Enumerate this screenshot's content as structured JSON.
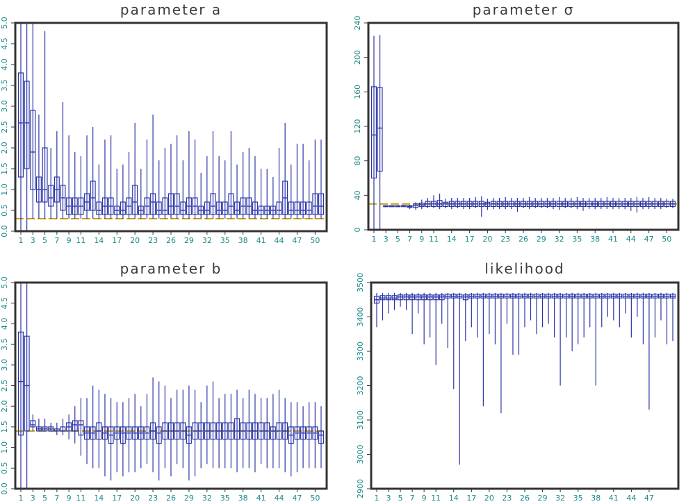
{
  "colors": {
    "box": "#2b35a8",
    "truth": "#c8a000",
    "tick_label": "#1a8a8a",
    "frame": "#333333"
  },
  "chart_data": [
    {
      "type": "boxplot",
      "title": "parameter a",
      "ylim": [
        0,
        5
      ],
      "yticks": [
        "0.0",
        "0.5",
        "1.0",
        "1.5",
        "2.0",
        "2.5",
        "3.0",
        "3.5",
        "4.0",
        "4.5",
        "5.0"
      ],
      "ytick_values": [
        0,
        0.5,
        1,
        1.5,
        2,
        2.5,
        3,
        3.5,
        4,
        4.5,
        5
      ],
      "xlabels": [
        "1",
        "3",
        "5",
        "7",
        "9",
        "11",
        "14",
        "17",
        "20",
        "23",
        "26",
        "29",
        "32",
        "35",
        "38",
        "41",
        "44",
        "47",
        "50"
      ],
      "xlabel_positions": [
        1,
        3,
        5,
        7,
        9,
        11,
        14,
        17,
        20,
        23,
        26,
        29,
        32,
        35,
        38,
        41,
        44,
        47,
        50
      ],
      "truth_line": 0.3,
      "whisker_low": [
        0.0,
        0.0,
        0.3,
        0.3,
        0.3,
        0.3,
        0.3,
        0.3,
        0.3,
        0.3,
        0.3,
        0.3,
        0.3,
        0.3,
        0.3,
        0.3,
        0.3,
        0.3,
        0.3,
        0.3,
        0.3,
        0.3,
        0.3,
        0.3,
        0.3,
        0.3,
        0.3,
        0.3,
        0.3,
        0.3,
        0.3,
        0.3,
        0.3,
        0.3,
        0.3,
        0.3,
        0.3,
        0.3,
        0.3,
        0.3,
        0.3,
        0.3,
        0.3,
        0.3,
        0.3,
        0.3,
        0.3,
        0.3,
        0.3,
        0.3,
        0.3
      ],
      "whisker_high": [
        5.0,
        5.0,
        5.0,
        2.8,
        4.8,
        2.0,
        2.4,
        3.1,
        2.3,
        1.9,
        1.8,
        2.3,
        2.5,
        1.6,
        2.2,
        2.3,
        1.5,
        1.6,
        1.9,
        2.6,
        1.5,
        2.2,
        2.8,
        1.7,
        2.0,
        2.1,
        2.3,
        1.7,
        2.4,
        2.2,
        1.4,
        1.8,
        2.4,
        1.8,
        1.7,
        2.4,
        1.6,
        1.9,
        2.0,
        1.8,
        1.5,
        1.5,
        1.3,
        2.0,
        2.6,
        1.6,
        2.1,
        2.1,
        1.7,
        2.2,
        2.2
      ],
      "q1": [
        1.3,
        1.5,
        1.0,
        0.7,
        0.7,
        0.6,
        0.7,
        0.5,
        0.4,
        0.4,
        0.4,
        0.5,
        0.5,
        0.4,
        0.4,
        0.4,
        0.4,
        0.4,
        0.4,
        0.4,
        0.4,
        0.4,
        0.4,
        0.4,
        0.4,
        0.4,
        0.4,
        0.4,
        0.4,
        0.4,
        0.4,
        0.4,
        0.4,
        0.4,
        0.4,
        0.4,
        0.4,
        0.4,
        0.4,
        0.4,
        0.4,
        0.4,
        0.4,
        0.4,
        0.4,
        0.4,
        0.4,
        0.4,
        0.4,
        0.4,
        0.4
      ],
      "median": [
        2.6,
        2.6,
        1.9,
        1.0,
        1.0,
        0.8,
        1.0,
        0.8,
        0.6,
        0.6,
        0.6,
        0.7,
        0.8,
        0.5,
        0.6,
        0.6,
        0.5,
        0.5,
        0.6,
        0.7,
        0.5,
        0.6,
        0.7,
        0.5,
        0.5,
        0.6,
        0.6,
        0.5,
        0.6,
        0.6,
        0.5,
        0.5,
        0.6,
        0.5,
        0.5,
        0.6,
        0.5,
        0.6,
        0.6,
        0.5,
        0.5,
        0.5,
        0.5,
        0.5,
        0.8,
        0.5,
        0.5,
        0.5,
        0.5,
        0.6,
        0.6
      ],
      "q3": [
        3.8,
        3.6,
        2.9,
        1.3,
        2.0,
        1.1,
        1.3,
        1.1,
        0.8,
        0.8,
        0.8,
        0.9,
        1.2,
        0.7,
        0.8,
        0.8,
        0.6,
        0.7,
        0.8,
        1.1,
        0.6,
        0.8,
        0.9,
        0.7,
        0.8,
        0.9,
        0.9,
        0.7,
        0.8,
        0.8,
        0.6,
        0.7,
        0.9,
        0.7,
        0.7,
        0.9,
        0.7,
        0.8,
        0.8,
        0.7,
        0.6,
        0.6,
        0.6,
        0.7,
        1.2,
        0.7,
        0.7,
        0.7,
        0.7,
        0.9,
        0.9
      ]
    },
    {
      "type": "boxplot",
      "title": "parameter σ",
      "ylim": [
        0,
        240
      ],
      "yticks": [
        "0",
        "40",
        "80",
        "120",
        "160",
        "200",
        "240"
      ],
      "ytick_values": [
        0,
        40,
        80,
        120,
        160,
        200,
        240
      ],
      "xlabels": [
        "1",
        "3",
        "5",
        "7",
        "9",
        "11",
        "14",
        "17",
        "20",
        "23",
        "26",
        "29",
        "32",
        "35",
        "38",
        "41",
        "44",
        "47",
        "50"
      ],
      "xlabel_positions": [
        1,
        3,
        5,
        7,
        9,
        11,
        14,
        17,
        20,
        23,
        26,
        29,
        32,
        35,
        38,
        41,
        44,
        47,
        50
      ],
      "truth_line": 30,
      "whisker_low": [
        0,
        0,
        27,
        27,
        27,
        27,
        24,
        23,
        24,
        25,
        25,
        24,
        25,
        24,
        25,
        24,
        24,
        25,
        15,
        23,
        24,
        24,
        24,
        24,
        21,
        25,
        24,
        25,
        25,
        25,
        24,
        23,
        25,
        25,
        24,
        22,
        24,
        24,
        24,
        24,
        24,
        24,
        24,
        22,
        20,
        24,
        24,
        24,
        24,
        25,
        25
      ],
      "whisker_high": [
        225,
        226,
        28,
        28,
        28,
        29,
        29,
        32,
        35,
        37,
        40,
        42,
        36,
        37,
        37,
        37,
        37,
        38,
        39,
        36,
        37,
        37,
        38,
        37,
        37,
        37,
        38,
        37,
        37,
        37,
        37,
        38,
        37,
        37,
        38,
        37,
        37,
        37,
        37,
        38,
        37,
        37,
        37,
        37,
        38,
        37,
        38,
        37,
        37,
        36,
        36
      ],
      "q1": [
        60,
        68,
        27,
        27,
        27,
        27,
        26,
        26,
        27,
        27,
        27,
        27,
        27,
        27,
        27,
        27,
        27,
        27,
        27,
        27,
        27,
        27,
        27,
        27,
        27,
        27,
        27,
        27,
        27,
        27,
        27,
        27,
        27,
        27,
        27,
        27,
        27,
        27,
        27,
        27,
        27,
        27,
        27,
        27,
        27,
        27,
        27,
        27,
        27,
        27,
        27
      ],
      "median": [
        110,
        118,
        27,
        27,
        27,
        28,
        27,
        28,
        29,
        30,
        30,
        30,
        30,
        30,
        30,
        30,
        30,
        30,
        30,
        30,
        30,
        30,
        30,
        30,
        30,
        30,
        30,
        30,
        30,
        30,
        30,
        30,
        30,
        30,
        30,
        30,
        30,
        30,
        30,
        30,
        30,
        30,
        30,
        30,
        30,
        30,
        30,
        30,
        30,
        30,
        30
      ],
      "q3": [
        166,
        165,
        28,
        28,
        28,
        28,
        28,
        30,
        31,
        33,
        33,
        34,
        32,
        33,
        33,
        33,
        33,
        33,
        33,
        32,
        33,
        33,
        33,
        33,
        33,
        33,
        33,
        33,
        33,
        33,
        33,
        33,
        33,
        33,
        33,
        33,
        33,
        33,
        33,
        33,
        33,
        33,
        33,
        33,
        33,
        33,
        33,
        33,
        33,
        33,
        33
      ]
    },
    {
      "type": "boxplot",
      "title": "parameter b",
      "ylim": [
        0,
        5
      ],
      "yticks": [
        "0.0",
        "0.5",
        "1.0",
        "1.5",
        "2.0",
        "2.5",
        "3.0",
        "3.5",
        "4.0",
        "4.5",
        "5.0"
      ],
      "ytick_values": [
        0,
        0.5,
        1,
        1.5,
        2,
        2.5,
        3,
        3.5,
        4,
        4.5,
        5
      ],
      "xlabels": [
        "1",
        "3",
        "5",
        "7",
        "9",
        "11",
        "14",
        "17",
        "20",
        "23",
        "26",
        "29",
        "32",
        "35",
        "38",
        "41",
        "44",
        "47",
        "50"
      ],
      "xlabel_positions": [
        1,
        3,
        5,
        7,
        9,
        11,
        14,
        17,
        20,
        23,
        26,
        29,
        32,
        35,
        38,
        41,
        44,
        47,
        50
      ],
      "truth_line": 1.4,
      "whisker_low": [
        0.0,
        0.0,
        1.4,
        1.4,
        1.4,
        1.4,
        1.3,
        1.3,
        1.2,
        1.1,
        0.8,
        0.6,
        0.5,
        0.5,
        0.3,
        0.2,
        0.4,
        0.3,
        0.4,
        0.4,
        0.5,
        0.6,
        0.4,
        0.2,
        0.5,
        0.3,
        0.6,
        0.5,
        0.2,
        0.3,
        0.5,
        0.6,
        0.5,
        0.5,
        0.5,
        0.5,
        0.4,
        0.5,
        0.5,
        0.4,
        0.6,
        0.5,
        0.5,
        0.5,
        0.4,
        0.3,
        0.4,
        0.5,
        0.5,
        0.5,
        0.5
      ],
      "whisker_high": [
        5.0,
        5.0,
        1.8,
        1.7,
        1.7,
        1.6,
        1.6,
        1.7,
        1.8,
        2.0,
        2.2,
        2.2,
        2.5,
        2.4,
        2.3,
        2.2,
        2.1,
        2.1,
        2.2,
        2.3,
        2.0,
        2.3,
        2.7,
        2.6,
        2.5,
        2.2,
        2.4,
        2.4,
        2.5,
        2.4,
        2.1,
        2.5,
        2.6,
        2.2,
        2.3,
        2.3,
        2.4,
        2.2,
        2.4,
        2.3,
        2.2,
        2.2,
        2.3,
        2.4,
        2.2,
        2.1,
        2.1,
        2.0,
        2.1,
        2.1,
        2.0
      ],
      "q1": [
        1.3,
        1.4,
        1.5,
        1.4,
        1.4,
        1.4,
        1.4,
        1.4,
        1.4,
        1.4,
        1.3,
        1.2,
        1.2,
        1.2,
        1.2,
        1.1,
        1.2,
        1.1,
        1.2,
        1.2,
        1.2,
        1.2,
        1.2,
        1.1,
        1.2,
        1.2,
        1.2,
        1.2,
        1.1,
        1.2,
        1.2,
        1.2,
        1.2,
        1.2,
        1.2,
        1.2,
        1.2,
        1.2,
        1.2,
        1.2,
        1.2,
        1.2,
        1.2,
        1.2,
        1.2,
        1.1,
        1.2,
        1.2,
        1.2,
        1.2,
        1.1
      ],
      "median": [
        2.6,
        2.5,
        1.55,
        1.45,
        1.45,
        1.45,
        1.4,
        1.4,
        1.5,
        1.55,
        1.55,
        1.35,
        1.35,
        1.4,
        1.35,
        1.3,
        1.35,
        1.35,
        1.35,
        1.35,
        1.35,
        1.35,
        1.4,
        1.35,
        1.4,
        1.4,
        1.4,
        1.4,
        1.3,
        1.4,
        1.4,
        1.4,
        1.4,
        1.4,
        1.4,
        1.4,
        1.4,
        1.4,
        1.4,
        1.4,
        1.4,
        1.4,
        1.4,
        1.4,
        1.4,
        1.3,
        1.35,
        1.35,
        1.35,
        1.35,
        1.3
      ],
      "q3": [
        3.8,
        3.7,
        1.65,
        1.5,
        1.5,
        1.5,
        1.45,
        1.5,
        1.6,
        1.65,
        1.65,
        1.5,
        1.5,
        1.6,
        1.5,
        1.5,
        1.5,
        1.5,
        1.5,
        1.5,
        1.5,
        1.5,
        1.6,
        1.5,
        1.6,
        1.6,
        1.6,
        1.6,
        1.5,
        1.6,
        1.6,
        1.6,
        1.6,
        1.6,
        1.6,
        1.6,
        1.7,
        1.6,
        1.6,
        1.6,
        1.6,
        1.6,
        1.5,
        1.6,
        1.6,
        1.5,
        1.5,
        1.5,
        1.5,
        1.5,
        1.4
      ]
    },
    {
      "type": "boxplot",
      "title": "likelihood",
      "ylim": [
        2900,
        3500
      ],
      "yticks": [
        "2900",
        "3000",
        "3100",
        "3200",
        "3300",
        "3400",
        "3500"
      ],
      "ytick_values": [
        2900,
        3000,
        3100,
        3200,
        3300,
        3400,
        3500
      ],
      "xlabels": [
        "1",
        "3",
        "5",
        "7",
        "9",
        "11",
        "14",
        "17",
        "20",
        "23",
        "26",
        "29",
        "32",
        "35",
        "38",
        "41",
        "44",
        "47"
      ],
      "xlabel_positions": [
        1,
        3,
        5,
        7,
        9,
        11,
        14,
        17,
        20,
        23,
        26,
        29,
        32,
        35,
        38,
        41,
        44,
        47
      ],
      "truth_line": null,
      "whisker_low": [
        3370,
        3390,
        3410,
        3420,
        3430,
        3420,
        3350,
        3410,
        3320,
        3340,
        3260,
        3380,
        3310,
        3190,
        2970,
        3330,
        3370,
        3340,
        3140,
        3350,
        3320,
        3120,
        3380,
        3290,
        3290,
        3370,
        3390,
        3350,
        3370,
        3380,
        3340,
        3200,
        3340,
        3300,
        3320,
        3340,
        3370,
        3200,
        3370,
        3400,
        3390,
        3370,
        3410,
        3340,
        3400,
        3320,
        3130,
        3340,
        3390,
        3320,
        3330
      ],
      "whisker_high": [
        3470,
        3470,
        3470,
        3470,
        3470,
        3470,
        3470,
        3470,
        3470,
        3470,
        3470,
        3470,
        3470,
        3470,
        3470,
        3470,
        3470,
        3470,
        3470,
        3470,
        3470,
        3470,
        3470,
        3470,
        3470,
        3470,
        3470,
        3470,
        3470,
        3470,
        3470,
        3470,
        3470,
        3470,
        3470,
        3470,
        3470,
        3470,
        3470,
        3470,
        3470,
        3470,
        3470,
        3470,
        3470,
        3470,
        3470,
        3470,
        3470,
        3470,
        3470
      ],
      "q1": [
        3440,
        3450,
        3450,
        3450,
        3450,
        3450,
        3450,
        3450,
        3450,
        3450,
        3450,
        3450,
        3455,
        3455,
        3455,
        3450,
        3455,
        3455,
        3455,
        3455,
        3455,
        3455,
        3455,
        3455,
        3455,
        3455,
        3455,
        3455,
        3455,
        3455,
        3455,
        3455,
        3455,
        3455,
        3455,
        3455,
        3455,
        3455,
        3455,
        3455,
        3455,
        3455,
        3455,
        3455,
        3455,
        3455,
        3455,
        3455,
        3455,
        3455,
        3455
      ],
      "median": [
        3450,
        3455,
        3455,
        3455,
        3458,
        3458,
        3458,
        3458,
        3458,
        3458,
        3458,
        3458,
        3460,
        3460,
        3460,
        3458,
        3460,
        3460,
        3460,
        3460,
        3460,
        3460,
        3460,
        3460,
        3460,
        3460,
        3460,
        3460,
        3460,
        3460,
        3460,
        3460,
        3460,
        3460,
        3460,
        3460,
        3460,
        3460,
        3460,
        3460,
        3460,
        3460,
        3460,
        3460,
        3460,
        3460,
        3460,
        3460,
        3460,
        3460,
        3460
      ],
      "q3": [
        3460,
        3462,
        3462,
        3462,
        3464,
        3464,
        3464,
        3464,
        3464,
        3464,
        3464,
        3464,
        3466,
        3466,
        3466,
        3464,
        3466,
        3466,
        3466,
        3466,
        3466,
        3466,
        3466,
        3466,
        3466,
        3466,
        3466,
        3466,
        3466,
        3466,
        3466,
        3466,
        3466,
        3466,
        3466,
        3466,
        3466,
        3466,
        3466,
        3466,
        3466,
        3466,
        3466,
        3466,
        3466,
        3466,
        3466,
        3466,
        3466,
        3466,
        3466
      ]
    }
  ]
}
